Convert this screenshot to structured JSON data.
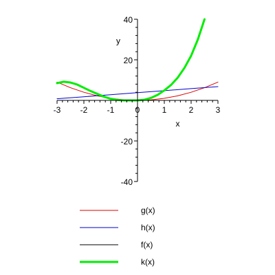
{
  "chart_data": {
    "type": "line",
    "title": "",
    "xlabel": "x",
    "ylabel": "y",
    "xlim": [
      -3,
      3
    ],
    "ylim": [
      -40,
      40
    ],
    "x_ticks": [
      -3,
      -2,
      -1,
      0,
      1,
      2,
      3
    ],
    "x_tick_labels": [
      "-3",
      "-2",
      "-1",
      "0",
      "1",
      "2",
      "3"
    ],
    "y_ticks": [
      -40,
      -20,
      20,
      40
    ],
    "y_tick_labels": [
      "-40",
      "-20",
      "20",
      "40"
    ],
    "grid": false,
    "legend_position": "bottom",
    "series": [
      {
        "name": "g(x)",
        "color": "#dd0000",
        "line_weight": "thin",
        "x": [
          -3,
          -2.5,
          -2,
          -1.5,
          -1,
          -0.5,
          0,
          0.5,
          1,
          1.5,
          2,
          2.5,
          3
        ],
        "y": [
          9,
          6.25,
          4,
          2.25,
          1,
          0.25,
          0,
          0.25,
          1,
          2.25,
          4,
          6.25,
          9
        ]
      },
      {
        "name": "h(x)",
        "color": "#0000cc",
        "line_weight": "thin",
        "x": [
          -3,
          -2,
          -1,
          0,
          1,
          2,
          3
        ],
        "y": [
          0.8,
          1.8,
          2.8,
          3.8,
          4.8,
          5.8,
          6.8
        ]
      },
      {
        "name": "f(x)",
        "color": "#000000",
        "line_weight": "thin",
        "x": [],
        "y": []
      },
      {
        "name": "k(x)",
        "color": "#00ee00",
        "line_weight": "thick",
        "x": [
          -3,
          -2.75,
          -2.5,
          -2.25,
          -2,
          -1.75,
          -1.5,
          -1.25,
          -1,
          -0.75,
          -0.5,
          -0.25,
          0,
          0.25,
          0.5,
          0.75,
          1,
          1.25,
          1.5,
          1.75,
          2,
          2.25,
          2.5
        ],
        "y": [
          8.5,
          9.2,
          8.8,
          7.8,
          6.2,
          4.6,
          3.2,
          1.8,
          0.8,
          0.2,
          0,
          0,
          0,
          0.3,
          1.2,
          2.7,
          4.9,
          7.6,
          11.2,
          16,
          22,
          30,
          40
        ]
      }
    ],
    "legend": [
      {
        "label": "g(x)",
        "color": "#dd0000",
        "line_weight": "thin"
      },
      {
        "label": "h(x)",
        "color": "#0000cc",
        "line_weight": "thin"
      },
      {
        "label": "f(x)",
        "color": "#000000",
        "line_weight": "thin"
      },
      {
        "label": "k(x)",
        "color": "#00ee00",
        "line_weight": "thick"
      }
    ]
  }
}
